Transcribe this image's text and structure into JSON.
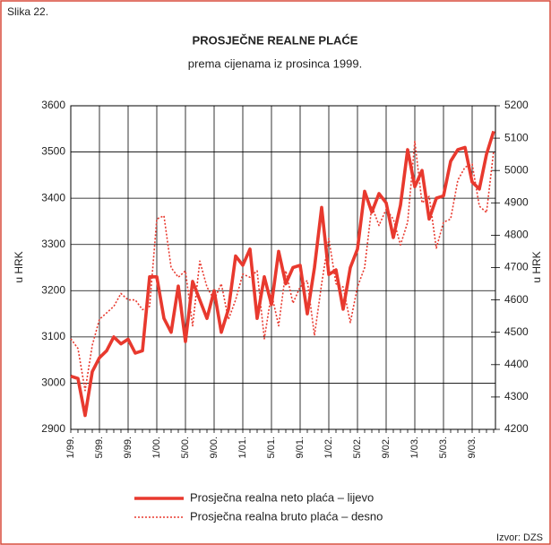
{
  "figure_label": "Slika 22.",
  "source": "Izvor: DZS",
  "chart_data": {
    "type": "line",
    "title": "PROSJEČNE REALNE PLAĆE",
    "subtitle": "prema cijenama iz prosinca 1999.",
    "ylabel": "u HRK",
    "y2label": "u HRK",
    "categories": [
      "1/99.",
      null,
      null,
      null,
      "5/99.",
      null,
      null,
      null,
      "9/99.",
      null,
      null,
      null,
      "1/00.",
      null,
      null,
      null,
      "5/00.",
      null,
      null,
      null,
      "9/00.",
      null,
      null,
      null,
      "1/01.",
      null,
      null,
      null,
      "5/01.",
      null,
      null,
      null,
      "9/01.",
      null,
      null,
      null,
      "1/02.",
      null,
      null,
      null,
      "5/02.",
      null,
      null,
      null,
      "9/02.",
      null,
      null,
      null,
      "1/03.",
      null,
      null,
      null,
      "5/03.",
      null,
      null,
      null,
      "9/03.",
      null,
      null,
      null
    ],
    "ylim": [
      2900,
      3600
    ],
    "yticks": [
      2900,
      3000,
      3100,
      3200,
      3300,
      3400,
      3500,
      3600
    ],
    "y2lim": [
      4200,
      5200
    ],
    "y2ticks": [
      4200,
      4300,
      4400,
      4500,
      4600,
      4700,
      4800,
      4900,
      5000,
      5100,
      5200
    ],
    "grid": true,
    "series": [
      {
        "name": "Prosječna realna neto plaća – lijevo",
        "color": "#e8392e",
        "style": "solid",
        "axis": "y",
        "values": [
          3015,
          3010,
          2930,
          3025,
          3055,
          3070,
          3100,
          3085,
          3095,
          3065,
          3070,
          3230,
          3230,
          3140,
          3110,
          3210,
          3090,
          3220,
          3180,
          3140,
          3200,
          3110,
          3160,
          3275,
          3255,
          3290,
          3140,
          3230,
          3170,
          3285,
          3215,
          3250,
          3255,
          3150,
          3250,
          3380,
          3235,
          3245,
          3160,
          3250,
          3290,
          3415,
          3370,
          3410,
          3390,
          3315,
          3385,
          3505,
          3425,
          3460,
          3355,
          3400,
          3405,
          3480,
          3505,
          3510,
          3435,
          3420,
          3495,
          3545
        ]
      },
      {
        "name": "Prosječna realna bruto plaća – desno",
        "color": "#e8392e",
        "style": "dotted",
        "axis": "y2",
        "values": [
          4480,
          4450,
          4320,
          4460,
          4540,
          4560,
          4580,
          4620,
          4600,
          4600,
          4570,
          4580,
          4850,
          4860,
          4700,
          4670,
          4690,
          4520,
          4720,
          4640,
          4600,
          4650,
          4540,
          4600,
          4680,
          4670,
          4690,
          4480,
          4620,
          4520,
          4690,
          4590,
          4640,
          4660,
          4490,
          4650,
          4790,
          4650,
          4640,
          4530,
          4640,
          4700,
          4890,
          4830,
          4880,
          4850,
          4770,
          4840,
          5090,
          4900,
          4920,
          4760,
          4840,
          4850,
          4970,
          5010,
          5020,
          4890,
          4870,
          5060
        ]
      }
    ]
  }
}
